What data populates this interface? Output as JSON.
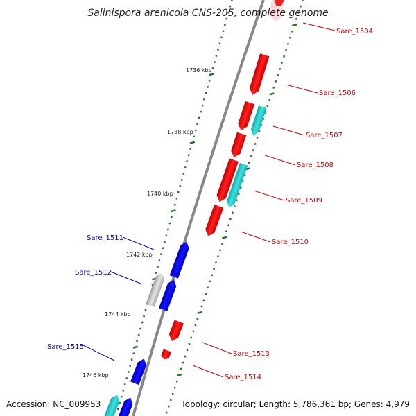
{
  "title": "Salinispora arenicola CNS-205, complete genome",
  "accession": "Accession: NC_009953",
  "topology": "Topology: circular; Length: 5,786,361 bp; Genes: 4,979",
  "kbp_labels": [
    "1736 kbp",
    "1738 kbp",
    "1740 kbp",
    "1742 kbp",
    "1744 kbp",
    "1746 kbp"
  ],
  "gene_labels_right": [
    "Sare_1504",
    "Sare_1506",
    "Sare_1507",
    "Sare_1508",
    "Sare_1509",
    "Sare_1510",
    "Sare_1513",
    "Sare_1514"
  ],
  "gene_labels_left": [
    "Sare_1511",
    "Sare_1512",
    "Sare_1515"
  ],
  "colors": {
    "forward_gene": "#ee0000",
    "reverse_gene": "#0000dd",
    "rna_gene": "#22cccc",
    "other_gene": "#bbbbbb",
    "backbone": "#888888",
    "tick": "#227722",
    "label_right": "#cc0000",
    "label_left": "#0000cc"
  }
}
